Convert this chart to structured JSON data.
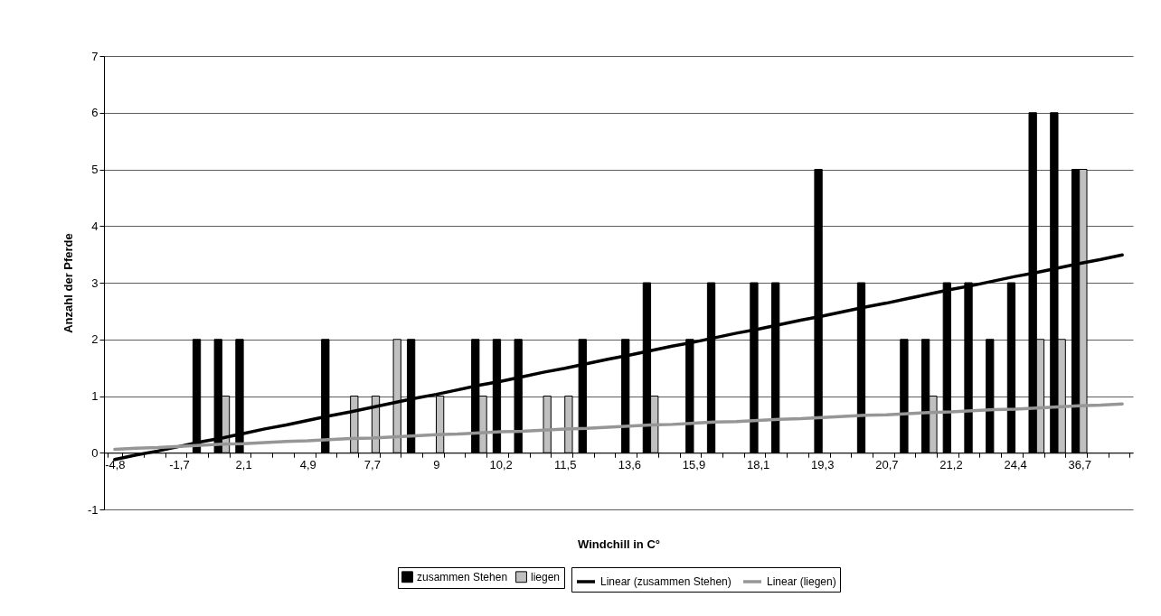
{
  "chart_data": {
    "type": "bar",
    "xlabel": "Windchill in C°",
    "ylabel": "Anzahl der Pferde",
    "categories": [
      "-4,8",
      null,
      null,
      "-1,7",
      null,
      null,
      "2,1",
      null,
      null,
      "4,9",
      null,
      null,
      "7,7",
      null,
      null,
      "9",
      null,
      null,
      "10,2",
      null,
      null,
      "11,5",
      null,
      null,
      "13,6",
      null,
      null,
      "15,9",
      null,
      null,
      "18,1",
      null,
      null,
      "19,3",
      null,
      null,
      "20,7",
      null,
      null,
      "21,2",
      null,
      null,
      "24,4",
      null,
      null,
      "36,7",
      null,
      null
    ],
    "series": [
      {
        "name": "zusammen Stehen",
        "color": "#000000",
        "values": [
          null,
          null,
          null,
          null,
          2,
          2,
          2,
          null,
          null,
          null,
          2,
          null,
          null,
          null,
          2,
          null,
          null,
          2,
          2,
          2,
          null,
          null,
          2,
          null,
          2,
          3,
          null,
          2,
          3,
          null,
          3,
          3,
          null,
          5,
          null,
          3,
          null,
          2,
          2,
          3,
          3,
          2,
          3,
          6,
          6,
          5,
          null,
          null
        ]
      },
      {
        "name": "liegen",
        "color": "#c0c0c0",
        "values": [
          null,
          null,
          null,
          null,
          null,
          1,
          null,
          null,
          null,
          null,
          null,
          1,
          1,
          2,
          null,
          1,
          null,
          1,
          null,
          null,
          1,
          1,
          null,
          null,
          null,
          1,
          null,
          null,
          null,
          null,
          null,
          null,
          null,
          null,
          null,
          null,
          null,
          null,
          1,
          null,
          null,
          null,
          null,
          2,
          2,
          5,
          null,
          null
        ]
      },
      {
        "name": "Linear (zusammen Stehen)",
        "type": "line",
        "color": "#000000",
        "values": [
          -0.12,
          -0.04,
          0.03,
          0.11,
          0.19,
          0.26,
          0.34,
          0.42,
          0.49,
          0.57,
          0.65,
          0.72,
          0.8,
          0.88,
          0.96,
          1.03,
          1.11,
          1.19,
          1.26,
          1.34,
          1.42,
          1.49,
          1.57,
          1.65,
          1.72,
          1.8,
          1.88,
          1.95,
          2.03,
          2.11,
          2.18,
          2.26,
          2.34,
          2.41,
          2.49,
          2.57,
          2.64,
          2.72,
          2.8,
          2.88,
          2.95,
          3.03,
          3.11,
          3.18,
          3.26,
          3.34,
          3.41,
          3.49
        ]
      },
      {
        "name": "Linear (liegen)",
        "type": "line",
        "color": "#969696",
        "values": [
          0.06,
          0.08,
          0.09,
          0.11,
          0.13,
          0.15,
          0.16,
          0.18,
          0.2,
          0.21,
          0.23,
          0.25,
          0.26,
          0.28,
          0.3,
          0.32,
          0.33,
          0.35,
          0.37,
          0.38,
          0.4,
          0.42,
          0.43,
          0.45,
          0.47,
          0.49,
          0.5,
          0.52,
          0.54,
          0.55,
          0.57,
          0.59,
          0.6,
          0.62,
          0.64,
          0.66,
          0.67,
          0.69,
          0.71,
          0.72,
          0.74,
          0.76,
          0.77,
          0.79,
          0.81,
          0.83,
          0.84,
          0.86
        ]
      }
    ],
    "ylim": [
      -1,
      7
    ],
    "yticks": [
      -1,
      0,
      1,
      2,
      3,
      4,
      5,
      6,
      7
    ],
    "grid": "y",
    "legend": "bottom"
  }
}
